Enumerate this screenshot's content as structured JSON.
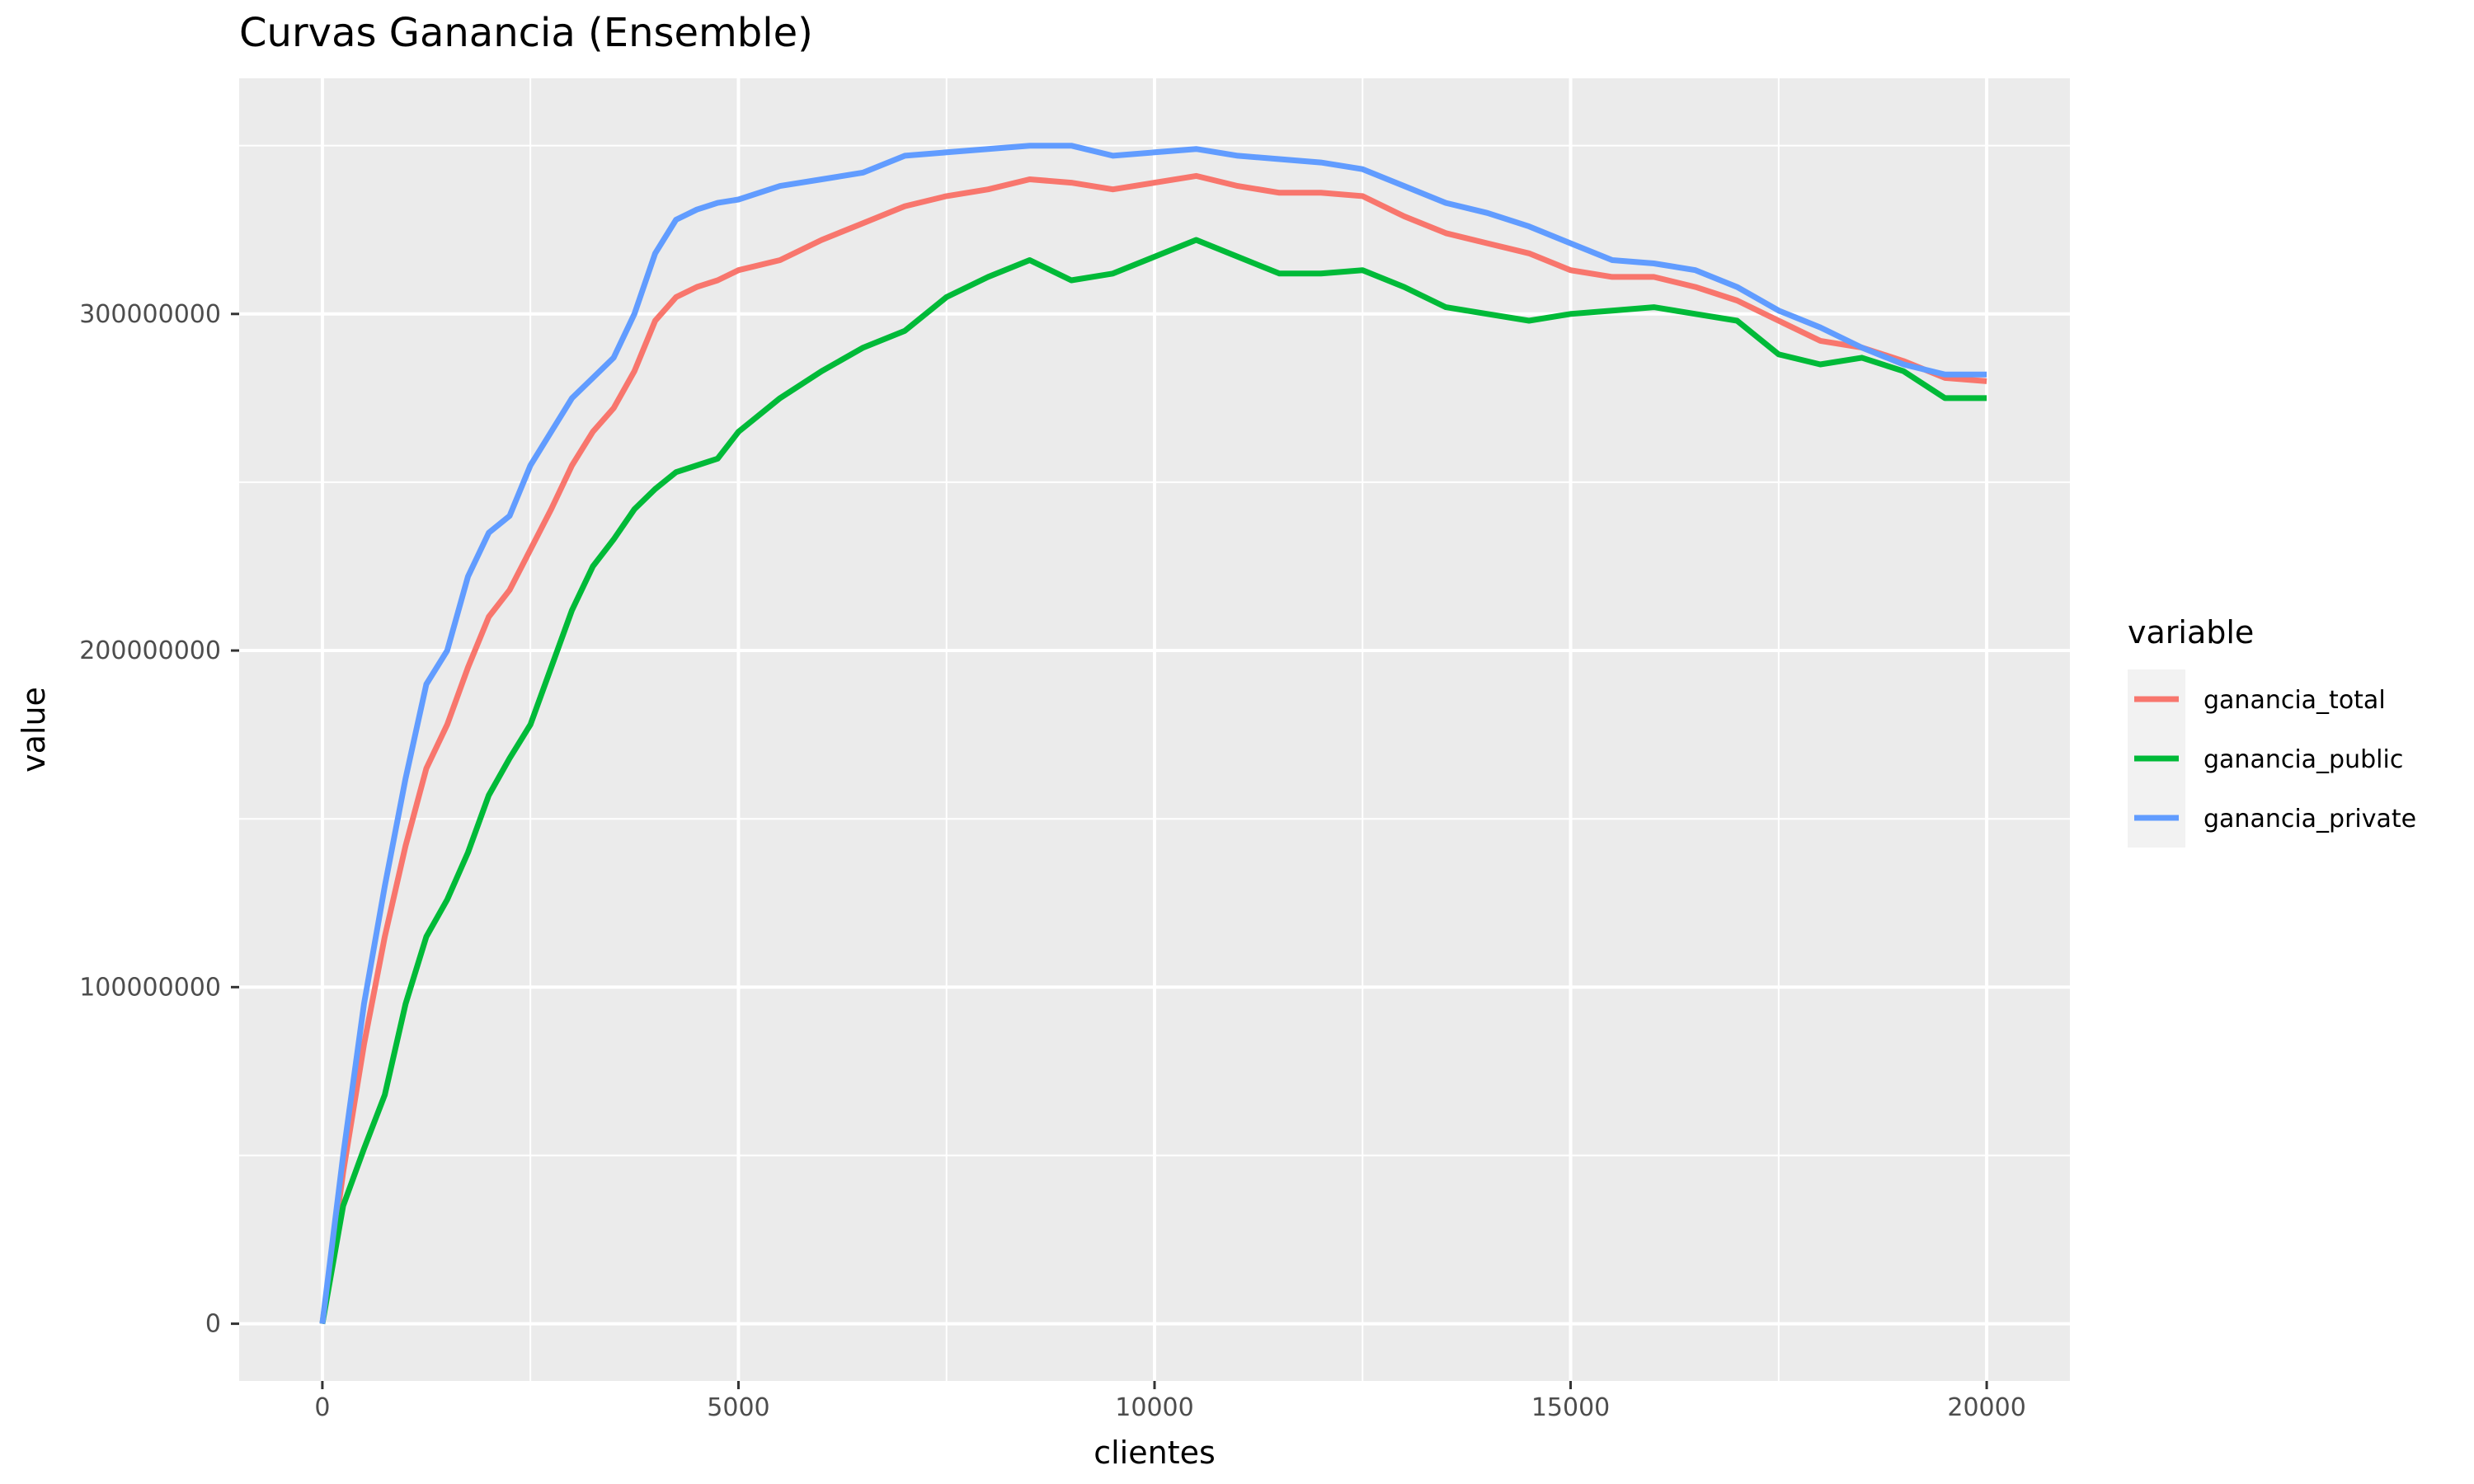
{
  "chart_data": {
    "type": "line",
    "title": "Curvas Ganancia (Ensemble)",
    "xlabel": "clientes",
    "ylabel": "value",
    "xlim": [
      -1000,
      21000
    ],
    "ylim": [
      -17000000,
      370000000
    ],
    "x_ticks": [
      0,
      5000,
      10000,
      15000,
      20000
    ],
    "x_tick_labels": [
      "0",
      "5000",
      "10000",
      "15000",
      "20000"
    ],
    "y_ticks": [
      0,
      100000000,
      200000000,
      300000000
    ],
    "y_tick_labels": [
      "0",
      "100000000",
      "200000000",
      "300000000"
    ],
    "grid": true,
    "legend_title": "variable",
    "legend_position": "right",
    "x": [
      0,
      250,
      500,
      750,
      1000,
      1250,
      1500,
      1750,
      2000,
      2250,
      2500,
      2750,
      3000,
      3250,
      3500,
      3750,
      4000,
      4250,
      4500,
      4750,
      5000,
      5500,
      6000,
      6500,
      7000,
      7500,
      8000,
      8500,
      9000,
      9500,
      10000,
      10500,
      11000,
      11500,
      12000,
      12500,
      13000,
      13500,
      14000,
      14500,
      15000,
      15500,
      16000,
      16500,
      17000,
      17500,
      18000,
      18500,
      19000,
      19500,
      20000
    ],
    "series": [
      {
        "name": "ganancia_total",
        "color": "#F8766D",
        "values": [
          0,
          45000000,
          83000000,
          115000000,
          142000000,
          165000000,
          178000000,
          195000000,
          210000000,
          218000000,
          230000000,
          242000000,
          255000000,
          265000000,
          272000000,
          283000000,
          298000000,
          305000000,
          308000000,
          310000000,
          313000000,
          316000000,
          322000000,
          327000000,
          332000000,
          335000000,
          337000000,
          340000000,
          339000000,
          337000000,
          339000000,
          341000000,
          338000000,
          336000000,
          336000000,
          335000000,
          329000000,
          324000000,
          321000000,
          318000000,
          313000000,
          311000000,
          311000000,
          308000000,
          304000000,
          298000000,
          292000000,
          290000000,
          286000000,
          281000000,
          280000000
        ]
      },
      {
        "name": "ganancia_public",
        "color": "#00BA38",
        "values": [
          0,
          35000000,
          52000000,
          68000000,
          95000000,
          115000000,
          126000000,
          140000000,
          157000000,
          168000000,
          178000000,
          195000000,
          212000000,
          225000000,
          233000000,
          242000000,
          248000000,
          253000000,
          255000000,
          257000000,
          265000000,
          275000000,
          283000000,
          290000000,
          295000000,
          305000000,
          311000000,
          316000000,
          310000000,
          312000000,
          317000000,
          322000000,
          317000000,
          312000000,
          312000000,
          313000000,
          308000000,
          302000000,
          300000000,
          298000000,
          300000000,
          301000000,
          302000000,
          300000000,
          298000000,
          288000000,
          285000000,
          287000000,
          283000000,
          275000000,
          275000000
        ]
      },
      {
        "name": "ganancia_private",
        "color": "#619CFF",
        "values": [
          0,
          50000000,
          95000000,
          130000000,
          162000000,
          190000000,
          200000000,
          222000000,
          235000000,
          240000000,
          255000000,
          265000000,
          275000000,
          281000000,
          287000000,
          300000000,
          318000000,
          328000000,
          331000000,
          333000000,
          334000000,
          338000000,
          340000000,
          342000000,
          347000000,
          348000000,
          349000000,
          350000000,
          350000000,
          347000000,
          348000000,
          349000000,
          347000000,
          346000000,
          345000000,
          343000000,
          338000000,
          333000000,
          330000000,
          326000000,
          321000000,
          316000000,
          315000000,
          313000000,
          308000000,
          301000000,
          296000000,
          290000000,
          285000000,
          282000000,
          282000000
        ]
      }
    ]
  }
}
